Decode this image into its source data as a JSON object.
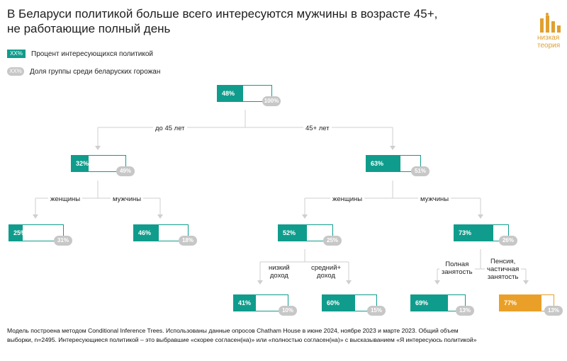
{
  "title_line1": "В Беларуси политикой больше всего интересуются мужчины в возрасте 45+,",
  "title_line2": "не работающие полный день",
  "logo": {
    "line1": "низкая",
    "line2": "теория",
    "color": "#e0a030"
  },
  "legend": {
    "interest": {
      "marker": "XX%",
      "label": "Процент интересующихся политикой"
    },
    "share": {
      "marker": "XX%",
      "label": "Доля группы среди беларуских горожан"
    }
  },
  "colors": {
    "teal": "#109c8c",
    "orange": "#eaa028",
    "gray": "#c7c7c7"
  },
  "tree": {
    "root": {
      "interest": "48%",
      "share": "100%",
      "interest_value": 48
    },
    "under45": {
      "branch_label": "до 45 лет",
      "interest": "32%",
      "share": "49%",
      "interest_value": 32,
      "women": {
        "branch_label": "женщины",
        "interest": "25%",
        "share": "31%",
        "interest_value": 25
      },
      "men": {
        "branch_label": "мужчины",
        "interest": "46%",
        "share": "18%",
        "interest_value": 46
      }
    },
    "over45": {
      "branch_label": "45+ лет",
      "interest": "63%",
      "share": "51%",
      "interest_value": 63,
      "women": {
        "branch_label": "женщины",
        "interest": "52%",
        "share": "25%",
        "interest_value": 52,
        "low_income": {
          "branch_label_1": "низкий",
          "branch_label_2": "доход",
          "interest": "41%",
          "share": "10%",
          "interest_value": 41
        },
        "mid_income": {
          "branch_label_1": "средний+",
          "branch_label_2": "доход",
          "interest": "60%",
          "share": "15%",
          "interest_value": 60
        }
      },
      "men": {
        "branch_label": "мужчины",
        "interest": "73%",
        "share": "26%",
        "interest_value": 73,
        "full_time": {
          "branch_label_1": "Полная",
          "branch_label_2": "занятость",
          "interest": "69%",
          "share": "13%",
          "interest_value": 69
        },
        "pension_part_time": {
          "branch_label_1": "Пенсия,",
          "branch_label_2": "частичная",
          "branch_label_3": "занятость",
          "interest": "77%",
          "share": "13%",
          "interest_value": 77
        }
      }
    }
  },
  "footnote_line1": "Модель построена методом Conditional Inference Trees. Использованы данные опросов Chatham House в июне 2024, ноябре 2023 и марте 2023. Общий объем",
  "footnote_line2": "выборки, n=2495. Интересующиеся политикой – это выбравшие «скорее согласен(на)» или «полностью согласен(на)» с высказыванием «Я интересуюсь политикой»"
}
